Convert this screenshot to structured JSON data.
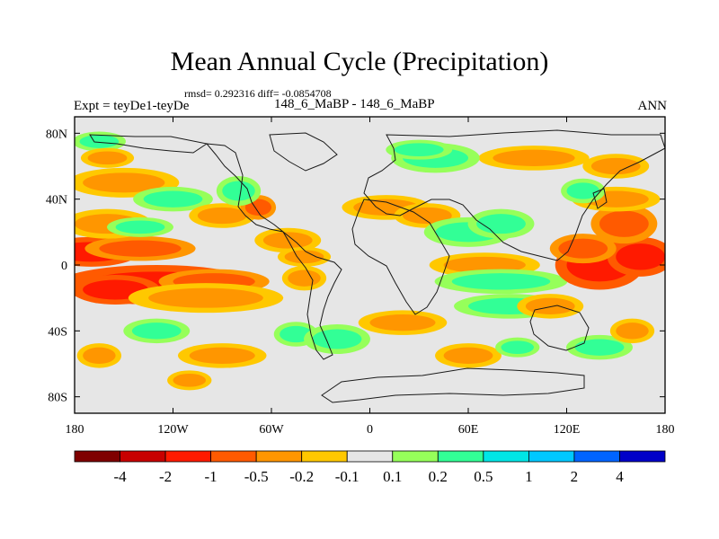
{
  "title": "Mean Annual Cycle (Precipitation)",
  "stats": "rmsd= 0.292316 diff= -0.0854708",
  "expt_label": "Expt = teyDe1-teyDe",
  "case_label": "148_6_MaBP - 148_6_MaBP",
  "season": "ANN",
  "chart_data": {
    "type": "heatmap",
    "title": "Mean Annual Cycle (Precipitation)",
    "subtitle": "rmsd= 0.292316 diff= -0.0854708",
    "xlabel": "",
    "ylabel": "",
    "xlim": [
      -180,
      180
    ],
    "ylim": [
      -90,
      90
    ],
    "x_ticks": [
      {
        "value": -180,
        "label": "180"
      },
      {
        "value": -120,
        "label": "120W"
      },
      {
        "value": -60,
        "label": "60W"
      },
      {
        "value": 0,
        "label": "0"
      },
      {
        "value": 60,
        "label": "60E"
      },
      {
        "value": 120,
        "label": "120E"
      },
      {
        "value": 180,
        "label": "180"
      }
    ],
    "y_ticks": [
      {
        "value": 80,
        "label": "80N"
      },
      {
        "value": 40,
        "label": "40N"
      },
      {
        "value": 0,
        "label": "0"
      },
      {
        "value": -40,
        "label": "40S"
      },
      {
        "value": -80,
        "label": "80S"
      }
    ],
    "colorbar": {
      "colors": [
        "#7f0000",
        "#c80000",
        "#ff1a00",
        "#ff5a00",
        "#ff9600",
        "#ffc800",
        "#e6e6e6",
        "#96ff5a",
        "#32ff96",
        "#00e6e6",
        "#00c8ff",
        "#0064ff",
        "#0000c8"
      ],
      "labels": [
        "-4",
        "-2",
        "-1",
        "-0.5",
        "-0.2",
        "-0.1",
        "0.1",
        "0.2",
        "0.5",
        "1",
        "2",
        "4"
      ]
    },
    "anomalies": [
      {
        "lon": -170,
        "lat": 8,
        "rlon": 22,
        "rlat": 6,
        "value": -1.5
      },
      {
        "lon": -140,
        "lat": 10,
        "rlon": 25,
        "rlat": 5,
        "value": -0.6
      },
      {
        "lon": -130,
        "lat": -12,
        "rlon": 45,
        "rlat": 8,
        "value": -1.2
      },
      {
        "lon": -155,
        "lat": -15,
        "rlon": 20,
        "rlat": 6,
        "value": -1.5
      },
      {
        "lon": -95,
        "lat": -10,
        "rlon": 25,
        "rlat": 5,
        "value": -0.6
      },
      {
        "lon": -100,
        "lat": -20,
        "rlon": 35,
        "rlat": 6,
        "value": -0.3
      },
      {
        "lon": -160,
        "lat": 25,
        "rlon": 20,
        "rlat": 6,
        "value": -0.3
      },
      {
        "lon": -150,
        "lat": 50,
        "rlon": 25,
        "rlat": 6,
        "value": -0.3
      },
      {
        "lon": -165,
        "lat": 75,
        "rlon": 12,
        "rlat": 4,
        "value": 0.3
      },
      {
        "lon": -120,
        "lat": 40,
        "rlon": 18,
        "rlat": 5,
        "value": 0.3
      },
      {
        "lon": -140,
        "lat": 23,
        "rlon": 15,
        "rlat": 4,
        "value": 0.3
      },
      {
        "lon": -90,
        "lat": 30,
        "rlon": 15,
        "rlat": 5,
        "value": -0.3
      },
      {
        "lon": -68,
        "lat": 35,
        "rlon": 8,
        "rlat": 5,
        "value": -0.7
      },
      {
        "lon": -80,
        "lat": 45,
        "rlon": 10,
        "rlat": 6,
        "value": 0.3
      },
      {
        "lon": -50,
        "lat": 15,
        "rlon": 15,
        "rlat": 5,
        "value": -0.3
      },
      {
        "lon": -40,
        "lat": 5,
        "rlon": 12,
        "rlat": 4,
        "value": -0.3
      },
      {
        "lon": -40,
        "lat": -8,
        "rlon": 10,
        "rlat": 5,
        "value": -0.3
      },
      {
        "lon": -45,
        "lat": -42,
        "rlon": 10,
        "rlat": 5,
        "value": 0.3
      },
      {
        "lon": -130,
        "lat": -40,
        "rlon": 15,
        "rlat": 5,
        "value": 0.3
      },
      {
        "lon": -165,
        "lat": -55,
        "rlon": 10,
        "rlat": 5,
        "value": -0.3
      },
      {
        "lon": -90,
        "lat": -55,
        "rlon": 20,
        "rlat": 5,
        "value": -0.3
      },
      {
        "lon": -110,
        "lat": -70,
        "rlon": 10,
        "rlat": 4,
        "value": -0.3
      },
      {
        "lon": -20,
        "lat": -45,
        "rlon": 15,
        "rlat": 6,
        "value": 0.3
      },
      {
        "lon": 20,
        "lat": -35,
        "rlon": 20,
        "rlat": 5,
        "value": -0.3
      },
      {
        "lon": 10,
        "lat": 35,
        "rlon": 20,
        "rlat": 5,
        "value": -0.3
      },
      {
        "lon": 35,
        "lat": 30,
        "rlon": 15,
        "rlat": 5,
        "value": -0.3
      },
      {
        "lon": 60,
        "lat": 20,
        "rlon": 20,
        "rlat": 6,
        "value": 0.4
      },
      {
        "lon": 80,
        "lat": 25,
        "rlon": 15,
        "rlat": 6,
        "value": 0.3
      },
      {
        "lon": 70,
        "lat": 0,
        "rlon": 25,
        "rlat": 5,
        "value": -0.3
      },
      {
        "lon": 80,
        "lat": -10,
        "rlon": 30,
        "rlat": 5,
        "value": 0.4
      },
      {
        "lon": 85,
        "lat": -25,
        "rlon": 25,
        "rlat": 5,
        "value": 0.3
      },
      {
        "lon": 110,
        "lat": -25,
        "rlon": 15,
        "rlat": 5,
        "value": -0.3
      },
      {
        "lon": 140,
        "lat": 0,
        "rlon": 20,
        "rlat": 10,
        "value": -1.2
      },
      {
        "lon": 165,
        "lat": 5,
        "rlon": 15,
        "rlat": 8,
        "value": -1.5
      },
      {
        "lon": 130,
        "lat": 10,
        "rlon": 15,
        "rlat": 6,
        "value": -0.6
      },
      {
        "lon": 155,
        "lat": 25,
        "rlon": 15,
        "rlat": 8,
        "value": -0.6
      },
      {
        "lon": 150,
        "lat": 40,
        "rlon": 20,
        "rlat": 5,
        "value": -0.3
      },
      {
        "lon": 100,
        "lat": 65,
        "rlon": 25,
        "rlat": 5,
        "value": -0.3
      },
      {
        "lon": 40,
        "lat": 65,
        "rlon": 20,
        "rlat": 6,
        "value": 0.3
      },
      {
        "lon": 130,
        "lat": 45,
        "rlon": 10,
        "rlat": 5,
        "value": 0.3
      },
      {
        "lon": 60,
        "lat": -55,
        "rlon": 15,
        "rlat": 5,
        "value": -0.3
      },
      {
        "lon": 90,
        "lat": -50,
        "rlon": 10,
        "rlat": 4,
        "value": 0.3
      },
      {
        "lon": 140,
        "lat": -50,
        "rlon": 15,
        "rlat": 5,
        "value": 0.3
      },
      {
        "lon": 160,
        "lat": -40,
        "rlon": 10,
        "rlat": 5,
        "value": -0.3
      },
      {
        "lon": 30,
        "lat": 70,
        "rlon": 15,
        "rlat": 4,
        "value": 0.3
      },
      {
        "lon": 150,
        "lat": 60,
        "rlon": 15,
        "rlat": 5,
        "value": -0.3
      },
      {
        "lon": -160,
        "lat": 65,
        "rlon": 12,
        "rlat": 4,
        "value": -0.3
      }
    ]
  }
}
